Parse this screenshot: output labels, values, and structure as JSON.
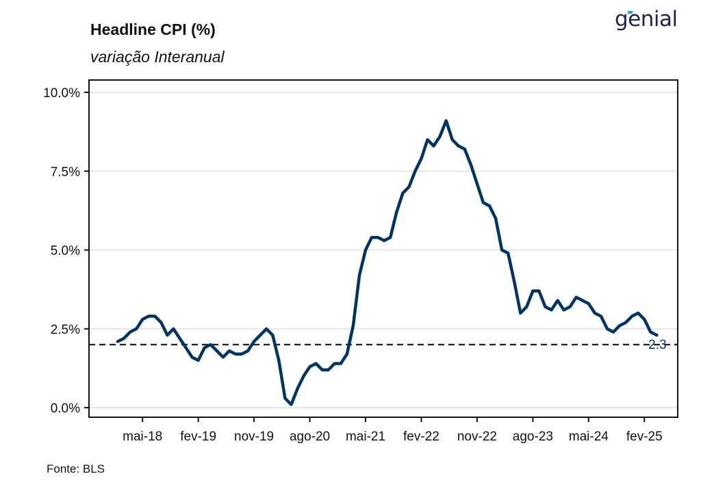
{
  "title": "Headline CPI (%)",
  "subtitle": "variação Interanual",
  "logo_text": "genial",
  "source": "Fonte: BLS",
  "colors": {
    "line": "#003366",
    "reference": "#111111",
    "grid": "#e6e6e6"
  },
  "chart_data": {
    "type": "line",
    "title": "Headline CPI (%)",
    "subtitle": "variação Interanual",
    "xlabel": "",
    "ylabel": "",
    "ylim": [
      0,
      10
    ],
    "y_ticks": [
      0,
      2.5,
      5.0,
      7.5,
      10.0
    ],
    "y_tick_labels": [
      "0.0%",
      "2.5%",
      "5.0%",
      "7.5%",
      "10.0%"
    ],
    "x_ticks": [
      "2018-05",
      "2019-02",
      "2019-11",
      "2020-08",
      "2021-05",
      "2022-02",
      "2022-11",
      "2023-08",
      "2024-05",
      "2025-02"
    ],
    "x_tick_labels": [
      "mai-18",
      "fev-19",
      "nov-19",
      "ago-20",
      "mai-21",
      "fev-22",
      "nov-22",
      "ago-23",
      "mai-24",
      "fev-25"
    ],
    "grid": "horizontal",
    "reference_line": {
      "y": 2.0,
      "style": "dashed"
    },
    "end_label": "2.3",
    "series": [
      {
        "x": [
          "2018-01",
          "2018-02",
          "2018-03",
          "2018-04",
          "2018-05",
          "2018-06",
          "2018-07",
          "2018-08",
          "2018-09",
          "2018-10",
          "2018-11",
          "2018-12",
          "2019-01",
          "2019-02",
          "2019-03",
          "2019-04",
          "2019-05",
          "2019-06",
          "2019-07",
          "2019-08",
          "2019-09",
          "2019-10",
          "2019-11",
          "2019-12",
          "2020-01",
          "2020-02",
          "2020-03",
          "2020-04",
          "2020-05",
          "2020-06",
          "2020-07",
          "2020-08",
          "2020-09",
          "2020-10",
          "2020-11",
          "2020-12",
          "2021-01",
          "2021-02",
          "2021-03",
          "2021-04",
          "2021-05",
          "2021-06",
          "2021-07",
          "2021-08",
          "2021-09",
          "2021-10",
          "2021-11",
          "2021-12",
          "2022-01",
          "2022-02",
          "2022-03",
          "2022-04",
          "2022-05",
          "2022-06",
          "2022-07",
          "2022-08",
          "2022-09",
          "2022-10",
          "2022-11",
          "2022-12",
          "2023-01",
          "2023-02",
          "2023-03",
          "2023-04",
          "2023-05",
          "2023-06",
          "2023-07",
          "2023-08",
          "2023-09",
          "2023-10",
          "2023-11",
          "2023-12",
          "2024-01",
          "2024-02",
          "2024-03",
          "2024-04",
          "2024-05",
          "2024-06",
          "2024-07",
          "2024-08",
          "2024-09",
          "2024-10",
          "2024-11",
          "2024-12",
          "2025-01",
          "2025-02",
          "2025-03",
          "2025-04"
        ],
        "values": [
          2.1,
          2.2,
          2.4,
          2.5,
          2.8,
          2.9,
          2.9,
          2.7,
          2.3,
          2.5,
          2.2,
          1.9,
          1.6,
          1.5,
          1.9,
          2.0,
          1.8,
          1.6,
          1.8,
          1.7,
          1.7,
          1.8,
          2.1,
          2.3,
          2.5,
          2.3,
          1.5,
          0.3,
          0.1,
          0.6,
          1.0,
          1.3,
          1.4,
          1.2,
          1.2,
          1.4,
          1.4,
          1.7,
          2.6,
          4.2,
          5.0,
          5.4,
          5.4,
          5.3,
          5.4,
          6.2,
          6.8,
          7.0,
          7.5,
          7.9,
          8.5,
          8.3,
          8.6,
          9.1,
          8.5,
          8.3,
          8.2,
          7.7,
          7.1,
          6.5,
          6.4,
          6.0,
          5.0,
          4.9,
          4.0,
          3.0,
          3.2,
          3.7,
          3.7,
          3.2,
          3.1,
          3.4,
          3.1,
          3.2,
          3.5,
          3.4,
          3.3,
          3.0,
          2.9,
          2.5,
          2.4,
          2.6,
          2.7,
          2.9,
          3.0,
          2.8,
          2.4,
          2.3
        ]
      }
    ]
  }
}
